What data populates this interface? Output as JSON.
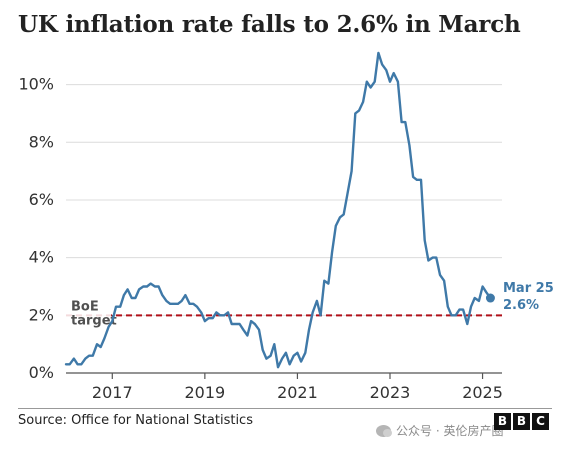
{
  "chart_data": {
    "type": "line",
    "title": "UK inflation rate falls to 2.6% in March",
    "source": "Source: Office for National Statistics",
    "logo": [
      "B",
      "B",
      "C"
    ],
    "watermark": "公众号 · 英伦房产圈",
    "x_ticks": [
      2017,
      2019,
      2021,
      2023,
      2025
    ],
    "y_ticks": [
      0,
      2,
      4,
      6,
      8,
      10
    ],
    "y_tick_labels": [
      "0%",
      "2%",
      "4%",
      "6%",
      "8%",
      "10%"
    ],
    "xlim": [
      2016.0,
      2025.42
    ],
    "ylim": [
      0,
      11.2
    ],
    "grid": "horizontal",
    "reference_line": {
      "value": 2,
      "label_lines": [
        "BoE",
        "target"
      ],
      "color": "#b0101a",
      "style": "dashed"
    },
    "end_label": {
      "lines": [
        "Mar 25",
        "2.6%"
      ],
      "x": 2025.17,
      "y": 2.6
    },
    "series": [
      {
        "color": "#3f79a8",
        "x": [
          2016.0,
          2016.08,
          2016.17,
          2016.25,
          2016.33,
          2016.42,
          2016.5,
          2016.58,
          2016.67,
          2016.75,
          2016.83,
          2016.92,
          2017.0,
          2017.08,
          2017.17,
          2017.25,
          2017.33,
          2017.42,
          2017.5,
          2017.58,
          2017.67,
          2017.75,
          2017.83,
          2017.92,
          2018.0,
          2018.08,
          2018.17,
          2018.25,
          2018.33,
          2018.42,
          2018.5,
          2018.58,
          2018.67,
          2018.75,
          2018.83,
          2018.92,
          2019.0,
          2019.08,
          2019.17,
          2019.25,
          2019.33,
          2019.42,
          2019.5,
          2019.58,
          2019.67,
          2019.75,
          2019.83,
          2019.92,
          2020.0,
          2020.08,
          2020.17,
          2020.25,
          2020.33,
          2020.42,
          2020.5,
          2020.58,
          2020.67,
          2020.75,
          2020.83,
          2020.92,
          2021.0,
          2021.08,
          2021.17,
          2021.25,
          2021.33,
          2021.42,
          2021.5,
          2021.58,
          2021.67,
          2021.75,
          2021.83,
          2021.92,
          2022.0,
          2022.08,
          2022.17,
          2022.25,
          2022.33,
          2022.42,
          2022.5,
          2022.58,
          2022.67,
          2022.75,
          2022.83,
          2022.92,
          2023.0,
          2023.08,
          2023.17,
          2023.25,
          2023.33,
          2023.42,
          2023.5,
          2023.58,
          2023.67,
          2023.75,
          2023.83,
          2023.92,
          2024.0,
          2024.08,
          2024.17,
          2024.25,
          2024.33,
          2024.42,
          2024.5,
          2024.58,
          2024.67,
          2024.75,
          2024.83,
          2024.92,
          2025.0,
          2025.08,
          2025.17
        ],
        "values": [
          0.3,
          0.3,
          0.5,
          0.3,
          0.3,
          0.5,
          0.6,
          0.6,
          1.0,
          0.9,
          1.2,
          1.6,
          1.8,
          2.3,
          2.3,
          2.7,
          2.9,
          2.6,
          2.6,
          2.9,
          3.0,
          3.0,
          3.1,
          3.0,
          3.0,
          2.7,
          2.5,
          2.4,
          2.4,
          2.4,
          2.5,
          2.7,
          2.4,
          2.4,
          2.3,
          2.1,
          1.8,
          1.9,
          1.9,
          2.1,
          2.0,
          2.0,
          2.1,
          1.7,
          1.7,
          1.7,
          1.5,
          1.3,
          1.8,
          1.7,
          1.5,
          0.8,
          0.5,
          0.6,
          1.0,
          0.2,
          0.5,
          0.7,
          0.3,
          0.6,
          0.7,
          0.4,
          0.7,
          1.5,
          2.1,
          2.5,
          2.0,
          3.2,
          3.1,
          4.2,
          5.1,
          5.4,
          5.5,
          6.2,
          7.0,
          9.0,
          9.1,
          9.4,
          10.1,
          9.9,
          10.1,
          11.1,
          10.7,
          10.5,
          10.1,
          10.4,
          10.1,
          8.7,
          8.7,
          7.9,
          6.8,
          6.7,
          6.7,
          4.6,
          3.9,
          4.0,
          4.0,
          3.4,
          3.2,
          2.3,
          2.0,
          2.0,
          2.2,
          2.2,
          1.7,
          2.3,
          2.6,
          2.5,
          3.0,
          2.8,
          2.6
        ]
      }
    ]
  }
}
